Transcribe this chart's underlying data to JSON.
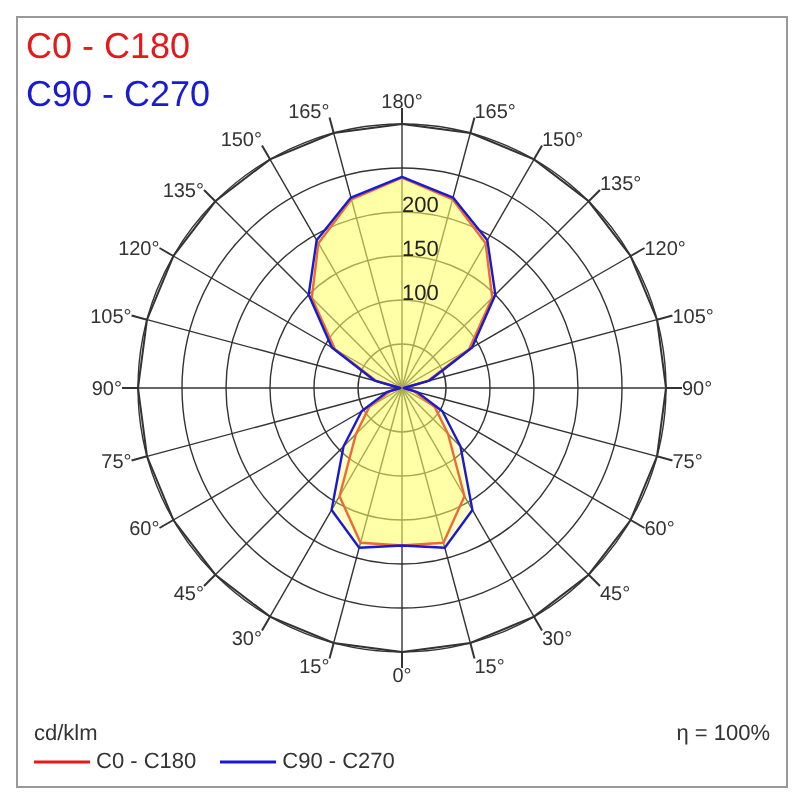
{
  "chart_data": {
    "type": "radar",
    "categories": [
      "180°",
      "165°",
      "150°",
      "135°",
      "120°",
      "105°",
      "90°",
      "75°",
      "60°",
      "45°",
      "30°",
      "15°",
      "0°",
      "15°",
      "30°",
      "45°",
      "60°",
      "75°",
      "90°",
      "105°",
      "120°",
      "135°",
      "150°",
      "165°"
    ],
    "series": [
      {
        "name": "C0 - C180",
        "color": "#e31a1c",
        "values": [
          239,
          222,
          190,
          145,
          88,
          30,
          2,
          14,
          43,
          74,
          142,
          182,
          179,
          182,
          142,
          74,
          43,
          14,
          2,
          30,
          88,
          145,
          190,
          222
        ]
      },
      {
        "name": "C90 - C270",
        "color": "#1a1ad0",
        "values": [
          240,
          224,
          194,
          150,
          92,
          32,
          2,
          18,
          53,
          94,
          160,
          188,
          179,
          188,
          160,
          94,
          53,
          18,
          2,
          32,
          92,
          150,
          194,
          224
        ]
      }
    ],
    "ylim": [
      0,
      300
    ],
    "yticks": [
      100,
      150,
      200
    ],
    "grid": true,
    "legend": "bottom left",
    "marker": "none",
    "annotations": [
      "cd/klm",
      "η = 100%"
    ]
  }
}
